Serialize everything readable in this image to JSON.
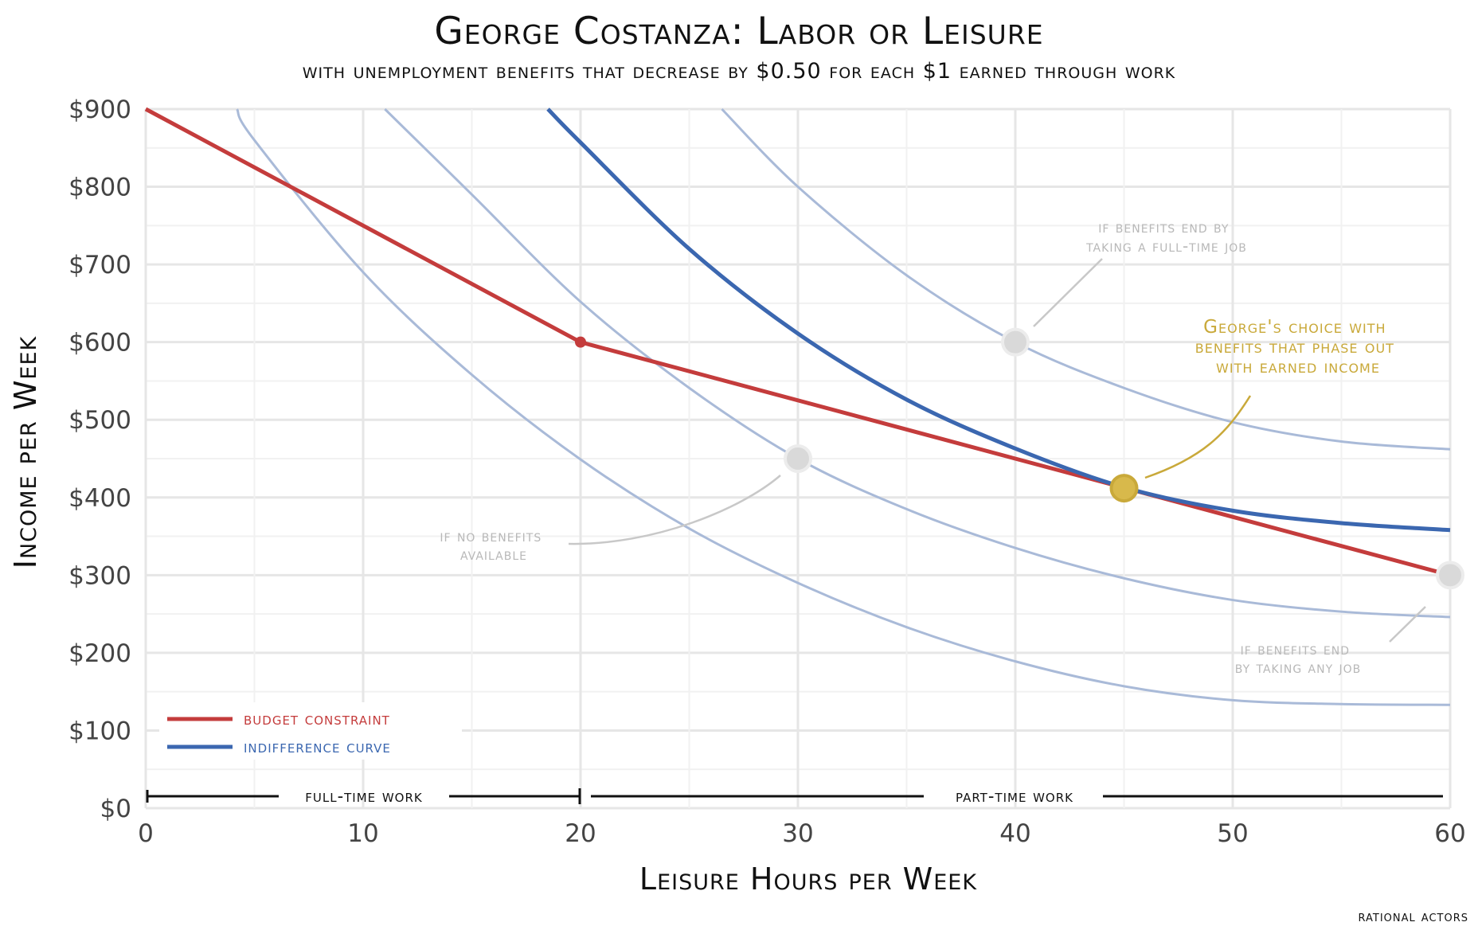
{
  "chart_data": {
    "type": "line",
    "title": "George Costanza: Labor or Leisure",
    "subtitle": "with unemployment benefits that decrease by $0.50 for each $1 earned through work",
    "xlabel": "Leisure Hours per Week",
    "ylabel": "Income per Week",
    "xlim": [
      0,
      60
    ],
    "ylim": [
      0,
      900
    ],
    "xticks": [
      0,
      10,
      20,
      30,
      40,
      50,
      60
    ],
    "yticks": [
      0,
      100,
      200,
      300,
      400,
      500,
      600,
      700,
      800,
      900
    ],
    "ytick_labels": [
      "$0",
      "$100",
      "$200",
      "$300",
      "$400",
      "$500",
      "$600",
      "$700",
      "$800",
      "$900"
    ],
    "grid": true,
    "legend_position": "bottom-left",
    "legend": [
      {
        "label": "budget constraint",
        "color": "#c43c3c"
      },
      {
        "label": "indifference curve",
        "color": "#3b67b0"
      }
    ],
    "colors": {
      "budget": "#c43c3c",
      "indifference": "#3b67b0",
      "faint_curve": "#a9bad8",
      "choice": "#d8b94b",
      "gray_point": "#d9d9d9",
      "annotation_gray": "#b8b8b8",
      "annotation_gold": "#c9a93a"
    },
    "budget_constraint": {
      "x": [
        0,
        20,
        60
      ],
      "y": [
        900,
        600,
        300
      ]
    },
    "indifference_curve": {
      "x": [
        18.5,
        20,
        25,
        30,
        35,
        40,
        45,
        50,
        55,
        60
      ],
      "y": [
        900,
        857,
        720,
        611,
        526,
        463,
        413,
        383,
        367,
        358
      ]
    },
    "other_indifference_curves": [
      {
        "x": [
          4.2,
          5,
          10,
          15,
          20,
          25,
          30,
          35,
          40,
          45,
          50,
          55,
          60
        ],
        "y": [
          900,
          860,
          690,
          558,
          449,
          360,
          290,
          233,
          189,
          157,
          139,
          134,
          133
        ]
      },
      {
        "x": [
          11,
          15,
          20,
          25,
          30,
          35,
          40,
          45,
          50,
          55,
          60
        ],
        "y": [
          900,
          790,
          652,
          541,
          450,
          385,
          335,
          296,
          268,
          253,
          246
        ]
      },
      {
        "x": [
          26.5,
          30,
          35,
          40,
          45,
          50,
          55,
          60
        ],
        "y": [
          900,
          800,
          686,
          600,
          541,
          497,
          472,
          462
        ]
      }
    ],
    "points": [
      {
        "x": 20,
        "y": 600,
        "kind": "kink"
      },
      {
        "x": 30,
        "y": 450,
        "kind": "gray"
      },
      {
        "x": 40,
        "y": 600,
        "kind": "gray"
      },
      {
        "x": 60,
        "y": 300,
        "kind": "gray"
      },
      {
        "x": 45,
        "y": 412,
        "kind": "choice"
      }
    ],
    "annotations": [
      {
        "lines": [
          "if benefits end by",
          "taking a full-time job"
        ],
        "color": "gray"
      },
      {
        "lines": [
          "George's choice with",
          "benefits that phase out",
          "with earned income"
        ],
        "color": "gold"
      },
      {
        "lines": [
          "if no benefits",
          "available"
        ],
        "color": "gray"
      },
      {
        "lines": [
          "if benefits end",
          "by taking any job"
        ],
        "color": "gray"
      }
    ],
    "periods": [
      {
        "label": "full-time work",
        "x_range": [
          0,
          20
        ]
      },
      {
        "label": "part-time work",
        "x_range": [
          20,
          60
        ]
      }
    ]
  },
  "credit": "rational actors"
}
